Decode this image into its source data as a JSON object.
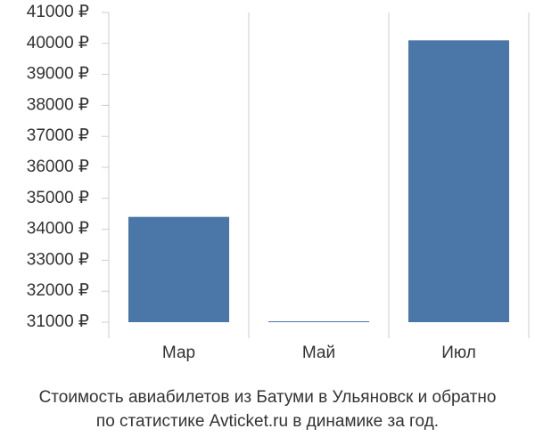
{
  "chart_data": {
    "type": "bar",
    "title": [
      "Стоимость авиабилетов из Батуми в Ульяновск и обратно",
      "по статистике Avticket.ru в динамике за год."
    ],
    "categories": [
      "Мар",
      "Май",
      "Июл"
    ],
    "values": [
      34400,
      31000,
      40100
    ],
    "color": "#4a76a8",
    "ylim": [
      31000,
      41000
    ],
    "yticks": [
      {
        "value": 31000,
        "label": "31000 ₽"
      },
      {
        "value": 32000,
        "label": "32000 ₽"
      },
      {
        "value": 33000,
        "label": "33000 ₽"
      },
      {
        "value": 34000,
        "label": "34000 ₽"
      },
      {
        "value": 35000,
        "label": "35000 ₽"
      },
      {
        "value": 36000,
        "label": "36000 ₽"
      },
      {
        "value": 37000,
        "label": "37000 ₽"
      },
      {
        "value": 38000,
        "label": "38000 ₽"
      },
      {
        "value": 39000,
        "label": "39000 ₽"
      },
      {
        "value": 40000,
        "label": "40000 ₽"
      },
      {
        "value": 41000,
        "label": "41000 ₽"
      }
    ]
  }
}
